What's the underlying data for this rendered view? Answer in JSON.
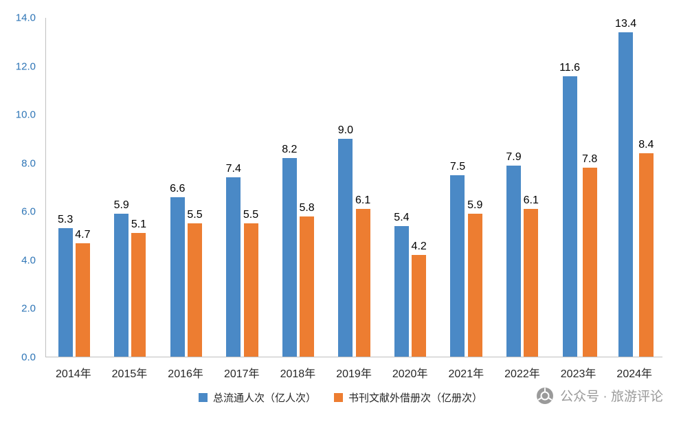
{
  "chart_data": {
    "type": "bar",
    "categories": [
      "2014年",
      "2015年",
      "2016年",
      "2017年",
      "2018年",
      "2019年",
      "2020年",
      "2021年",
      "2022年",
      "2023年",
      "2024年"
    ],
    "series": [
      {
        "name": "总流通人次（亿人次）",
        "color": "#4a89c6",
        "values": [
          5.3,
          5.9,
          6.6,
          7.4,
          8.2,
          9.0,
          5.4,
          7.5,
          7.9,
          11.6,
          13.4
        ]
      },
      {
        "name": "书刊文献外借册次（亿册次）",
        "color": "#ed7d31",
        "values": [
          4.7,
          5.1,
          5.5,
          5.5,
          5.8,
          6.1,
          4.2,
          5.9,
          6.1,
          7.8,
          8.4
        ]
      }
    ],
    "title": "",
    "xlabel": "",
    "ylabel": "",
    "ylim": [
      0,
      14
    ],
    "ytick_step": 2,
    "yticks_top_to_bottom": [
      "14.0",
      "12.0",
      "10.0",
      "8.0",
      "6.0",
      "4.0",
      "2.0",
      "0.0"
    ],
    "grid": false,
    "legend_position": "bottom",
    "axis_label_color": "#2e75b6",
    "data_label_color": "#000000"
  },
  "watermark": {
    "text": "公众号 · 旅游评论"
  }
}
